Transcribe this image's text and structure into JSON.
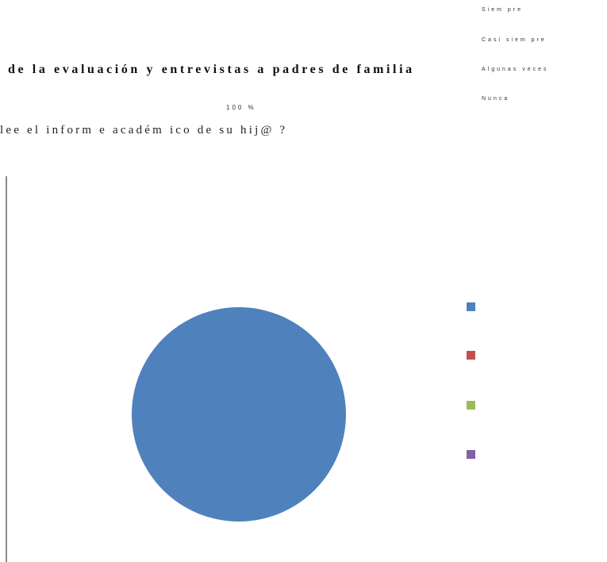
{
  "title": "de la evaluación y entrevistas a padres de familia",
  "question": "lee el inform e académ ico de su hij@ ?",
  "chart_data": {
    "type": "pie",
    "categories": [
      "Siem pre",
      "Casi siem pre",
      "Algunas veces",
      "Nunca"
    ],
    "values": [
      100,
      0,
      0,
      0
    ],
    "data_labels": [
      "100 %"
    ],
    "legend_placement": "right",
    "colors": [
      "#4F81BD",
      "#C0504D",
      "#9BBB59",
      "#8064A2"
    ]
  },
  "legend_text": [
    "Siem pre",
    "Casi siem pre",
    "Algunas veces",
    "Nunca"
  ]
}
